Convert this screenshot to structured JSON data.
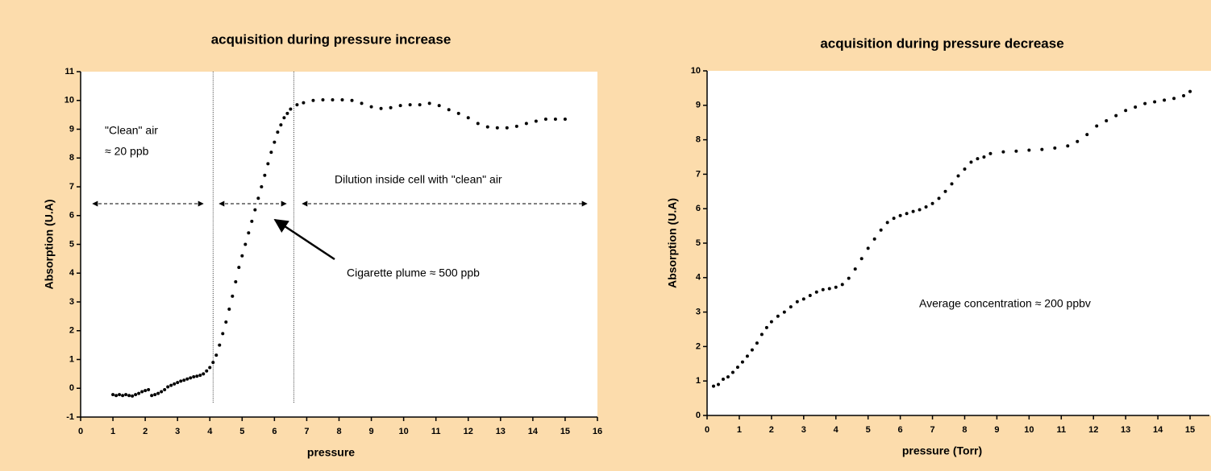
{
  "chart_data": [
    {
      "type": "scatter",
      "title": "acquisition during pressure increase",
      "x_label": "pressure",
      "y_label": "Absorption (U.A)",
      "color": "#000000",
      "xlim": [
        0,
        16
      ],
      "ylim": [
        -1,
        11
      ],
      "xticks": [
        0,
        1,
        2,
        3,
        4,
        5,
        6,
        7,
        8,
        9,
        10,
        11,
        12,
        13,
        14,
        15,
        16
      ],
      "yticks": [
        -1,
        0,
        1,
        2,
        3,
        4,
        5,
        6,
        7,
        8,
        9,
        10,
        11
      ],
      "vlines": [
        4.1,
        6.6
      ],
      "annotations": [
        "\"Clean\" air",
        "≈ 20 ppb",
        "Dilution inside cell with \"clean\" air",
        "Cigarette plume ≈ 500 ppb"
      ],
      "x": [
        1.0,
        1.1,
        1.2,
        1.3,
        1.4,
        1.5,
        1.6,
        1.7,
        1.8,
        1.9,
        2.0,
        2.1,
        2.2,
        2.3,
        2.4,
        2.5,
        2.6,
        2.7,
        2.8,
        2.9,
        3.0,
        3.1,
        3.2,
        3.3,
        3.4,
        3.5,
        3.6,
        3.7,
        3.8,
        3.9,
        4.0,
        4.1,
        4.2,
        4.3,
        4.4,
        4.5,
        4.6,
        4.7,
        4.8,
        4.9,
        5.0,
        5.1,
        5.2,
        5.3,
        5.4,
        5.5,
        5.6,
        5.7,
        5.8,
        5.9,
        6.0,
        6.1,
        6.2,
        6.3,
        6.4,
        6.5,
        6.7,
        6.9,
        7.2,
        7.5,
        7.8,
        8.1,
        8.4,
        8.7,
        9.0,
        9.3,
        9.6,
        9.9,
        10.2,
        10.5,
        10.8,
        11.1,
        11.4,
        11.7,
        12.0,
        12.3,
        12.6,
        12.9,
        13.2,
        13.5,
        13.8,
        14.1,
        14.4,
        14.7,
        15.0
      ],
      "values": [
        -0.22,
        -0.25,
        -0.22,
        -0.25,
        -0.22,
        -0.25,
        -0.27,
        -0.22,
        -0.18,
        -0.12,
        -0.08,
        -0.05,
        -0.25,
        -0.22,
        -0.18,
        -0.12,
        -0.05,
        0.05,
        0.1,
        0.15,
        0.2,
        0.25,
        0.28,
        0.32,
        0.36,
        0.4,
        0.42,
        0.45,
        0.5,
        0.6,
        0.72,
        0.9,
        1.15,
        1.5,
        1.9,
        2.3,
        2.75,
        3.2,
        3.7,
        4.2,
        4.6,
        5.0,
        5.4,
        5.8,
        6.2,
        6.6,
        7.0,
        7.4,
        7.8,
        8.2,
        8.55,
        8.9,
        9.15,
        9.4,
        9.55,
        9.7,
        9.85,
        9.92,
        10.0,
        10.02,
        10.02,
        10.02,
        10.0,
        9.9,
        9.78,
        9.72,
        9.75,
        9.82,
        9.85,
        9.85,
        9.9,
        9.82,
        9.68,
        9.55,
        9.4,
        9.2,
        9.08,
        9.05,
        9.05,
        9.1,
        9.2,
        9.28,
        9.35,
        9.35,
        9.35
      ]
    },
    {
      "type": "scatter",
      "title": "acquisition during pressure decrease",
      "x_label": "pressure (Torr)",
      "y_label": "Absorption (U.A)",
      "color": "#000000",
      "xlim": [
        0,
        15.6
      ],
      "ylim": [
        0,
        10
      ],
      "xticks": [
        0,
        1,
        2,
        3,
        4,
        5,
        6,
        7,
        8,
        9,
        10,
        11,
        12,
        13,
        14,
        15
      ],
      "yticks": [
        0,
        1,
        2,
        3,
        4,
        5,
        6,
        7,
        8,
        9,
        10
      ],
      "annotations": [
        "Average concentration ≈ 200 ppbv"
      ],
      "x": [
        0.2,
        0.35,
        0.5,
        0.65,
        0.8,
        0.95,
        1.1,
        1.25,
        1.4,
        1.55,
        1.7,
        1.85,
        2.0,
        2.2,
        2.4,
        2.6,
        2.8,
        3.0,
        3.2,
        3.4,
        3.6,
        3.8,
        4.0,
        4.2,
        4.4,
        4.6,
        4.8,
        5.0,
        5.2,
        5.4,
        5.6,
        5.8,
        6.0,
        6.2,
        6.4,
        6.6,
        6.8,
        7.0,
        7.2,
        7.4,
        7.6,
        7.8,
        8.0,
        8.2,
        8.4,
        8.6,
        8.8,
        9.2,
        9.6,
        10.0,
        10.4,
        10.8,
        11.2,
        11.5,
        11.8,
        12.1,
        12.4,
        12.7,
        13.0,
        13.3,
        13.6,
        13.9,
        14.2,
        14.5,
        14.8,
        15.0
      ],
      "values": [
        0.85,
        0.9,
        1.05,
        1.12,
        1.25,
        1.4,
        1.55,
        1.72,
        1.9,
        2.1,
        2.35,
        2.55,
        2.72,
        2.88,
        3.0,
        3.15,
        3.3,
        3.38,
        3.48,
        3.58,
        3.65,
        3.68,
        3.72,
        3.8,
        3.98,
        4.25,
        4.55,
        4.85,
        5.12,
        5.38,
        5.6,
        5.72,
        5.8,
        5.86,
        5.92,
        5.97,
        6.05,
        6.15,
        6.3,
        6.5,
        6.72,
        6.95,
        7.15,
        7.35,
        7.45,
        7.5,
        7.6,
        7.65,
        7.67,
        7.7,
        7.72,
        7.76,
        7.82,
        7.95,
        8.15,
        8.4,
        8.55,
        8.7,
        8.85,
        8.95,
        9.05,
        9.1,
        9.15,
        9.2,
        9.28,
        9.4
      ]
    }
  ]
}
